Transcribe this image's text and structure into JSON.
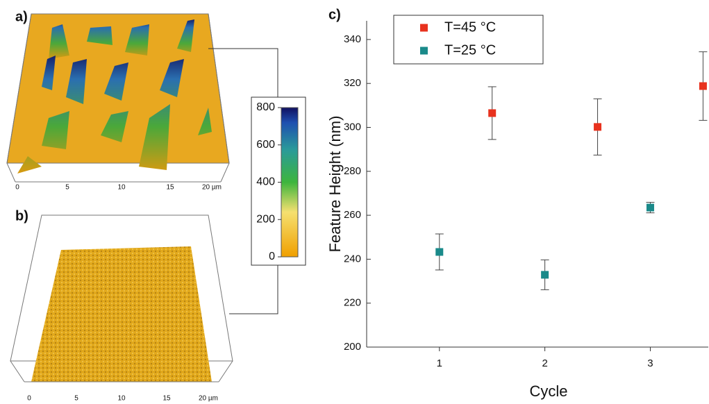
{
  "panel_labels": [
    "a)",
    "b)",
    "c)"
  ],
  "afm": {
    "x_ticks": [
      "0",
      "5",
      "10",
      "15",
      "20 µm"
    ]
  },
  "colorbar": {
    "lim": [
      0,
      800
    ],
    "ticks": [
      0,
      200,
      400,
      600,
      800
    ]
  },
  "chart_data": {
    "type": "scatter",
    "x_label": "Cycle",
    "y_label": "Feature Height (nm)",
    "series": [
      {
        "name": "T=45 °C",
        "color": "#e8321e",
        "x": [
          1.5,
          2.5,
          3.5
        ],
        "values": [
          306.5,
          300.2,
          318.8
        ],
        "errors": [
          12,
          12.8,
          15.6
        ]
      },
      {
        "name": "T=25 °C",
        "color": "#1a8a8a",
        "x": [
          1,
          2,
          3
        ],
        "values": [
          243.3,
          232.9,
          263.5
        ],
        "errors": [
          8.2,
          6.8,
          2.4
        ]
      }
    ],
    "xlim": [
      0.31,
      3.55
    ],
    "ylim": [
      200,
      348.5
    ],
    "xticks": [
      1,
      2,
      3
    ],
    "yticks": [
      200,
      220,
      240,
      260,
      280,
      300,
      320,
      340
    ],
    "legend": "upper-left",
    "grid": false
  }
}
